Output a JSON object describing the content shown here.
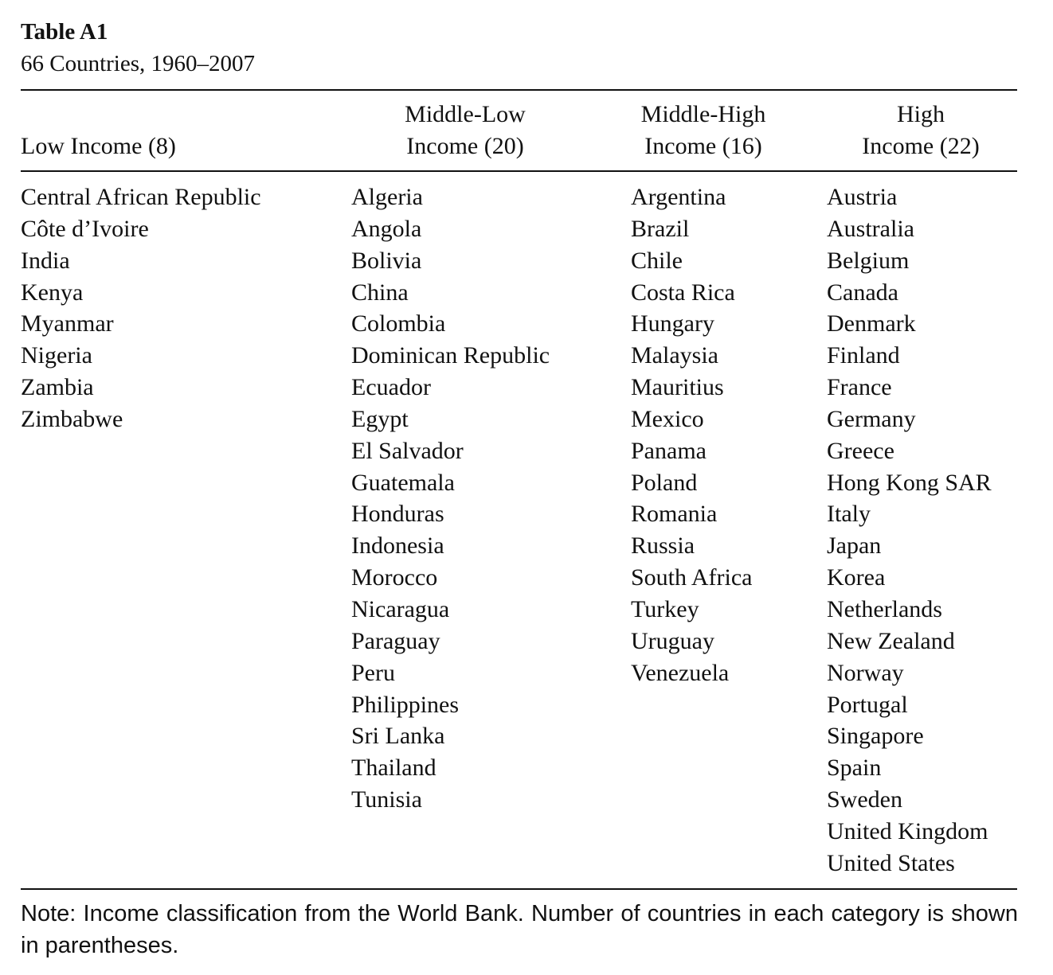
{
  "table": {
    "title": "Table A1",
    "subtitle": "66 Countries, 1960–2007",
    "headers": [
      {
        "line1": "",
        "line2": "Low Income (8)"
      },
      {
        "line1": "Middle-Low",
        "line2": "Income (20)"
      },
      {
        "line1": "Middle-High",
        "line2": "Income (16)"
      },
      {
        "line1": "High",
        "line2": "Income (22)"
      }
    ],
    "columns": [
      [
        "Central African Republic",
        "Côte d’Ivoire",
        "India",
        "Kenya",
        "Myanmar",
        "Nigeria",
        "Zambia",
        "Zimbabwe"
      ],
      [
        "Algeria",
        "Angola",
        "Bolivia",
        "China",
        "Colombia",
        "Dominican Republic",
        "Ecuador",
        "Egypt",
        "El Salvador",
        "Guatemala",
        "Honduras",
        "Indonesia",
        "Morocco",
        "Nicaragua",
        "Paraguay",
        "Peru",
        "Philippines",
        "Sri Lanka",
        "Thailand",
        "Tunisia"
      ],
      [
        "Argentina",
        "Brazil",
        "Chile",
        "Costa Rica",
        "Hungary",
        "Malaysia",
        "Mauritius",
        "Mexico",
        "Panama",
        "Poland",
        "Romania",
        "Russia",
        "South Africa",
        "Turkey",
        "Uruguay",
        "Venezuela"
      ],
      [
        "Austria",
        "Australia",
        "Belgium",
        "Canada",
        "Denmark",
        "Finland",
        "France",
        "Germany",
        "Greece",
        "Hong Kong SAR",
        "Italy",
        "Japan",
        "Korea",
        "Netherlands",
        "New Zealand",
        "Norway",
        "Portugal",
        "Singapore",
        "Spain",
        "Sweden",
        "United Kingdom",
        "United States"
      ]
    ],
    "note": "Note: Income classification from the World Bank. Number of countries in each category is shown in parentheses."
  }
}
